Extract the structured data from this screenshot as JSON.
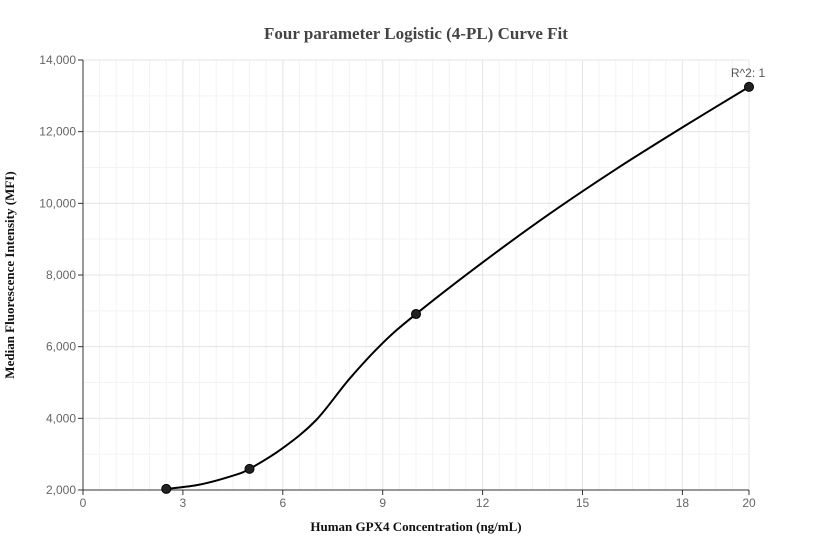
{
  "chart_data": {
    "type": "scatter",
    "title": "Four parameter Logistic (4-PL) Curve Fit",
    "xlabel": "Human GPX4 Concentration (ng/mL)",
    "ylabel": "Median Fluorescence Intensity (MFI)",
    "xlim": [
      0,
      20
    ],
    "ylim": [
      2000,
      14000
    ],
    "x_ticks": [
      0,
      3,
      6,
      9,
      12,
      15,
      18,
      20
    ],
    "x_tick_labels": [
      "0",
      "3",
      "6",
      "9",
      "12",
      "15",
      "18",
      "20"
    ],
    "y_ticks": [
      2000,
      4000,
      6000,
      8000,
      10000,
      12000,
      14000
    ],
    "y_tick_labels": [
      "2,000",
      "4,000",
      "6,000",
      "8,000",
      "10,000",
      "12,000",
      "14,000"
    ],
    "grid": true,
    "series": [
      {
        "values": [
          {
            "x": 2.5,
            "y": 2030
          },
          {
            "x": 5,
            "y": 2590
          },
          {
            "x": 10,
            "y": 6910
          },
          {
            "x": 20,
            "y": 13250
          }
        ]
      }
    ],
    "fit_curve": [
      {
        "x": 2.5,
        "y": 2030
      },
      {
        "x": 3.5,
        "y": 2150
      },
      {
        "x": 4.5,
        "y": 2400
      },
      {
        "x": 5,
        "y": 2590
      },
      {
        "x": 6,
        "y": 3170
      },
      {
        "x": 7,
        "y": 3950
      },
      {
        "x": 8,
        "y": 5100
      },
      {
        "x": 9,
        "y": 6100
      },
      {
        "x": 10,
        "y": 6910
      },
      {
        "x": 12,
        "y": 8350
      },
      {
        "x": 14,
        "y": 9700
      },
      {
        "x": 16,
        "y": 10950
      },
      {
        "x": 18,
        "y": 12120
      },
      {
        "x": 20,
        "y": 13250
      }
    ],
    "annotation": "R^2: 1"
  },
  "colors": {
    "curve": "#000000",
    "point": "#222222",
    "grid": "#e6e6e6"
  }
}
